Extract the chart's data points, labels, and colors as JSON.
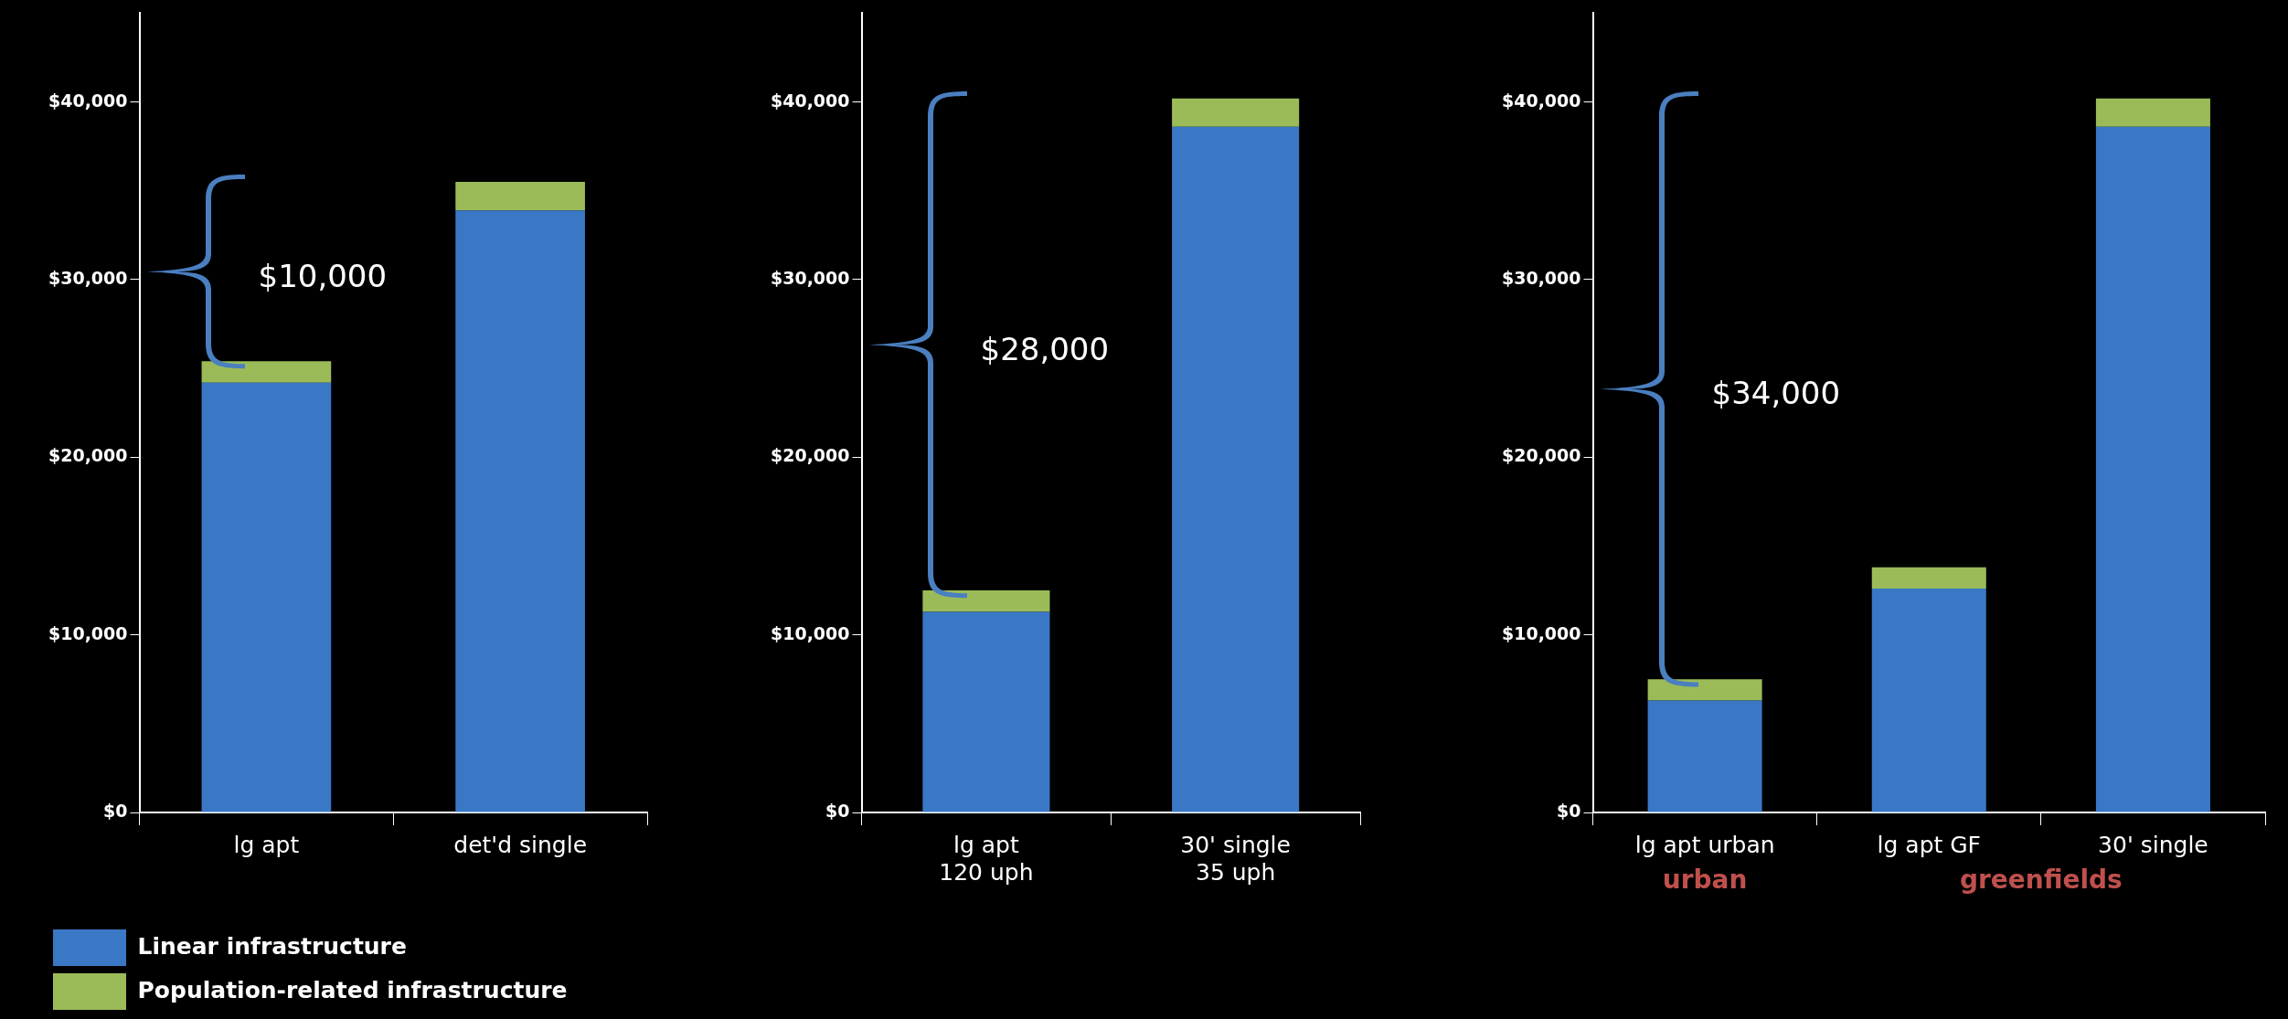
{
  "chart_data": [
    {
      "type": "bar",
      "stacked": true,
      "categories": [
        "lg apt",
        "det'd single"
      ],
      "ylim": [
        0,
        45000
      ],
      "yticks": [
        {
          "value": 0,
          "label": "$0"
        },
        {
          "value": 10000,
          "label": "$10,000"
        },
        {
          "value": 20000,
          "label": "$20,000"
        },
        {
          "value": 30000,
          "label": "$30,000"
        },
        {
          "value": 40000,
          "label": "$40,000"
        }
      ],
      "grid": false,
      "legend": "bottom left",
      "annotations": [
        "$10,000"
      ],
      "series": [
        {
          "name": "Linear infrastructure",
          "color": "#3a78c6",
          "values": [
            24200,
            33900
          ]
        },
        {
          "name": "Population-related infrastructure",
          "color": "#9bbb59",
          "values": [
            1200,
            1600
          ]
        }
      ]
    },
    {
      "type": "bar",
      "stacked": true,
      "categories": [
        "lg apt\n120 uph",
        "30' single\n35 uph"
      ],
      "ylim": [
        0,
        45000
      ],
      "yticks": [
        {
          "value": 0,
          "label": "$0"
        },
        {
          "value": 10000,
          "label": "$10,000"
        },
        {
          "value": 20000,
          "label": "$20,000"
        },
        {
          "value": 30000,
          "label": "$30,000"
        },
        {
          "value": 40000,
          "label": "$40,000"
        }
      ],
      "grid": false,
      "annotations": [
        "$28,000"
      ],
      "series": [
        {
          "color": "#3a78c6",
          "values": [
            11300,
            38600
          ]
        },
        {
          "color": "#9bbb59",
          "values": [
            1200,
            1600
          ]
        }
      ]
    },
    {
      "type": "bar",
      "stacked": true,
      "categories": [
        "lg apt urban",
        "lg apt GF",
        "30' single"
      ],
      "ylim": [
        0,
        45000
      ],
      "yticks": [
        {
          "value": 0,
          "label": "$0"
        },
        {
          "value": 10000,
          "label": "$10,000"
        },
        {
          "value": 20000,
          "label": "$20,000"
        },
        {
          "value": 30000,
          "label": "$30,000"
        },
        {
          "value": 40000,
          "label": "$40,000"
        }
      ],
      "grid": false,
      "annotations": [
        "$34,000",
        "urban",
        "greenfields"
      ],
      "series": [
        {
          "color": "#3a78c6",
          "values": [
            6300,
            12600,
            38600
          ]
        },
        {
          "color": "#9bbb59",
          "values": [
            1200,
            1200,
            1600
          ]
        }
      ]
    }
  ]
}
